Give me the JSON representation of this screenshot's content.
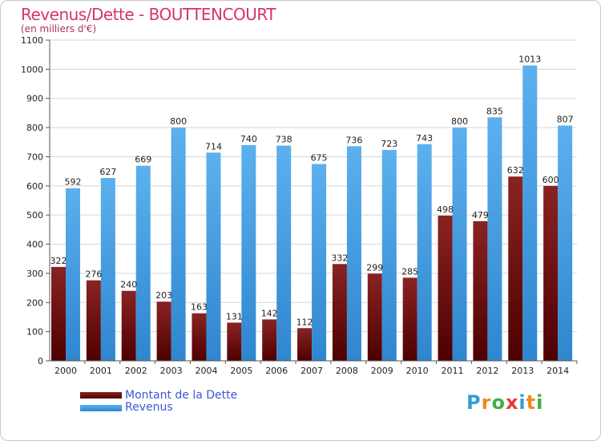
{
  "chart_data": {
    "type": "bar",
    "title": "Revenus/Dette - BOUTTENCOURT",
    "subtitle": "(en milliers d'€)",
    "categories": [
      "2000",
      "2001",
      "2002",
      "2003",
      "2004",
      "2005",
      "2006",
      "2007",
      "2008",
      "2009",
      "2010",
      "2011",
      "2012",
      "2013",
      "2014"
    ],
    "series": [
      {
        "name": "Montant de la Dette",
        "color": "#7a1414",
        "values": [
          322,
          276,
          240,
          203,
          163,
          131,
          142,
          112,
          332,
          299,
          285,
          498,
          479,
          632,
          600
        ]
      },
      {
        "name": "Revenus",
        "color": "#4aa3e6",
        "values": [
          592,
          627,
          669,
          800,
          714,
          740,
          738,
          675,
          736,
          723,
          743,
          800,
          835,
          1013,
          807
        ]
      }
    ],
    "ylim": [
      0,
      1100
    ],
    "yticks": [
      0,
      100,
      200,
      300,
      400,
      500,
      600,
      700,
      800,
      900,
      1000,
      1100
    ],
    "grid": true,
    "legend_position": "bottom-left"
  },
  "logo": {
    "letters": [
      "P",
      "r",
      "o",
      "x",
      "i",
      "t",
      "i"
    ],
    "colors": [
      "#2ea0d6",
      "#f08a1c",
      "#3fae49",
      "#e23a3a",
      "#2ea0d6",
      "#f08a1c",
      "#3fae49"
    ]
  }
}
